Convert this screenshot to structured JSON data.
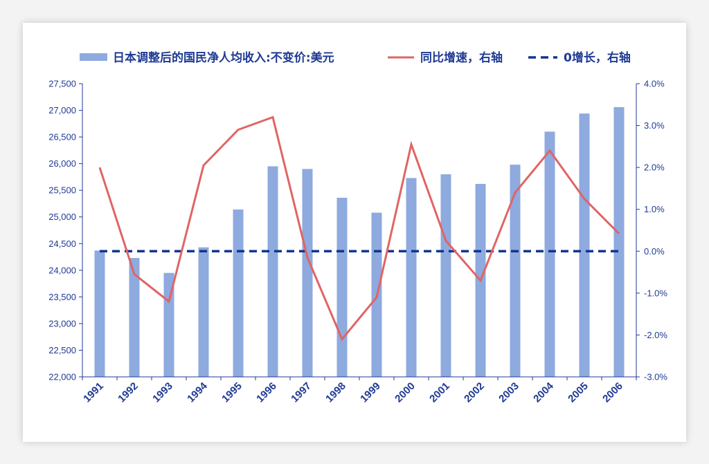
{
  "chart_data": {
    "type": "bar+line",
    "categories": [
      "1991",
      "1992",
      "1993",
      "1994",
      "1995",
      "1996",
      "1997",
      "1998",
      "1999",
      "2000",
      "2001",
      "2002",
      "2003",
      "2004",
      "2005",
      "2006"
    ],
    "series": [
      {
        "name": "日本调整后的国民净人均收入:不变价:美元",
        "type": "bar",
        "axis": "left",
        "color": "#8eaadf",
        "values": [
          24370,
          24230,
          23950,
          24430,
          25140,
          25950,
          25900,
          25360,
          25080,
          25730,
          25800,
          25620,
          25980,
          26600,
          26940,
          27060
        ]
      },
      {
        "name": "同比增速，右轴",
        "type": "line",
        "axis": "right",
        "color": "#e06464",
        "values": [
          2.0,
          -0.55,
          -1.2,
          2.05,
          2.9,
          3.2,
          -0.15,
          -2.1,
          -1.1,
          2.55,
          0.25,
          -0.7,
          1.4,
          2.4,
          1.25,
          0.42
        ]
      },
      {
        "name": "0增长，右轴",
        "type": "line",
        "style": "dashed",
        "axis": "right",
        "color": "#12358f",
        "values": [
          0,
          0,
          0,
          0,
          0,
          0,
          0,
          0,
          0,
          0,
          0,
          0,
          0,
          0,
          0,
          0
        ]
      }
    ],
    "left_axis": {
      "ylim": [
        22000,
        27500
      ],
      "ticks": [
        22000,
        22500,
        23000,
        23500,
        24000,
        24500,
        25000,
        25500,
        26000,
        26500,
        27000,
        27500
      ],
      "tick_labels": [
        "22,000",
        "22,500",
        "23,000",
        "23,500",
        "24,000",
        "24,500",
        "25,000",
        "25,500",
        "26,000",
        "26,500",
        "27,000",
        "27,500"
      ]
    },
    "right_axis": {
      "ylim": [
        -3.0,
        4.0
      ],
      "ticks": [
        -3.0,
        -2.0,
        -1.0,
        0.0,
        1.0,
        2.0,
        3.0,
        4.0
      ],
      "tick_labels": [
        "-3.0%",
        "-2.0%",
        "-1.0%",
        "0.0%",
        "1.0%",
        "2.0%",
        "3.0%",
        "4.0%"
      ]
    },
    "legend": "top",
    "grid": false
  }
}
